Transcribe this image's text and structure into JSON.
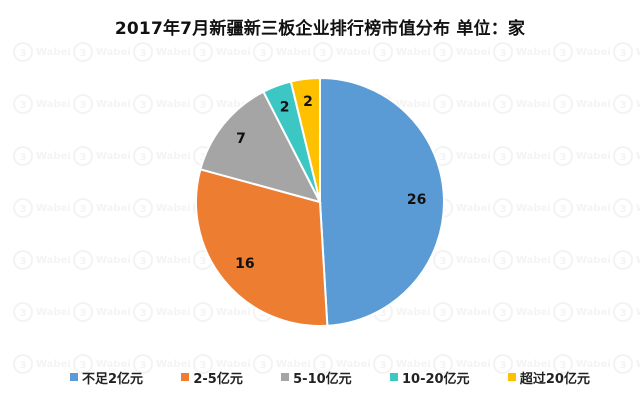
{
  "chart_data": {
    "type": "pie",
    "title": "2017年7月新疆新三板企业排行榜市值分布  单位：家",
    "categories": [
      "不足2亿元",
      "2-5亿元",
      "5-10亿元",
      "10-20亿元",
      "超过20亿元"
    ],
    "values": [
      26,
      16,
      7,
      2,
      2
    ],
    "colors": [
      "#5B9BD5",
      "#ED7D31",
      "#A5A5A5",
      "#3CC7C5",
      "#FFC000"
    ],
    "data_labels": [
      "26",
      "16",
      "7",
      "2",
      "2"
    ],
    "legend_position": "bottom",
    "start_angle": "12 o'clock, clockwise"
  },
  "watermark": {
    "brand": "Wabei",
    "icon": "wabei-logo-icon"
  }
}
